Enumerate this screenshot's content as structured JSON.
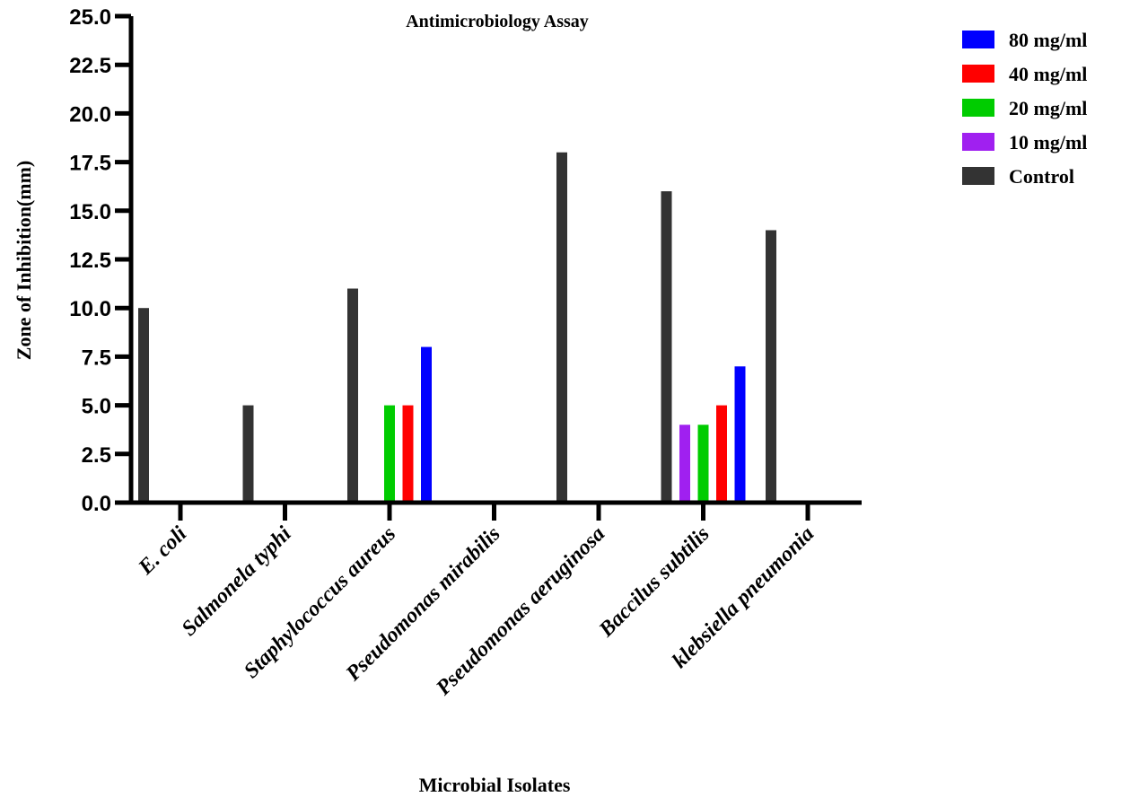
{
  "chart_data": {
    "type": "bar",
    "title": "Antimicrobiology Assay",
    "xlabel": "Microbial Isolates",
    "ylabel": "Zone of Inhibition(mm)",
    "ylim": [
      0,
      25
    ],
    "yticks": [
      "0.0",
      "2.5",
      "5.0",
      "7.5",
      "10.0",
      "12.5",
      "15.0",
      "17.5",
      "20.0",
      "22.5",
      "25.0"
    ],
    "categories": [
      "E. coli",
      "Salmonela typhi",
      "Staphylococcus aureus",
      "Pseudomonas mirabilis",
      "Pseudomonas aeruginosa",
      "Baccilus subtilis",
      "klebsiella pneumonia"
    ],
    "series": [
      {
        "name": "Control",
        "color": "#333333",
        "values": [
          10,
          5,
          11,
          0,
          18,
          16,
          14
        ]
      },
      {
        "name": "10 mg/ml",
        "color": "#a020f0",
        "values": [
          0,
          0,
          0,
          0,
          0,
          4,
          0
        ]
      },
      {
        "name": "20 mg/ml",
        "color": "#00cc00",
        "values": [
          0,
          0,
          5,
          0,
          0,
          4,
          0
        ]
      },
      {
        "name": "40 mg/ml",
        "color": "#ff0000",
        "values": [
          0,
          0,
          5,
          0,
          0,
          5,
          0
        ]
      },
      {
        "name": "80 mg/ml",
        "color": "#0000ff",
        "values": [
          0,
          0,
          8,
          0,
          0,
          7,
          0
        ]
      }
    ],
    "legend": {
      "position": "top-right",
      "order": [
        "80 mg/ml",
        "40 mg/ml",
        "20 mg/ml",
        "10 mg/ml",
        "Control"
      ]
    },
    "grid": false
  }
}
